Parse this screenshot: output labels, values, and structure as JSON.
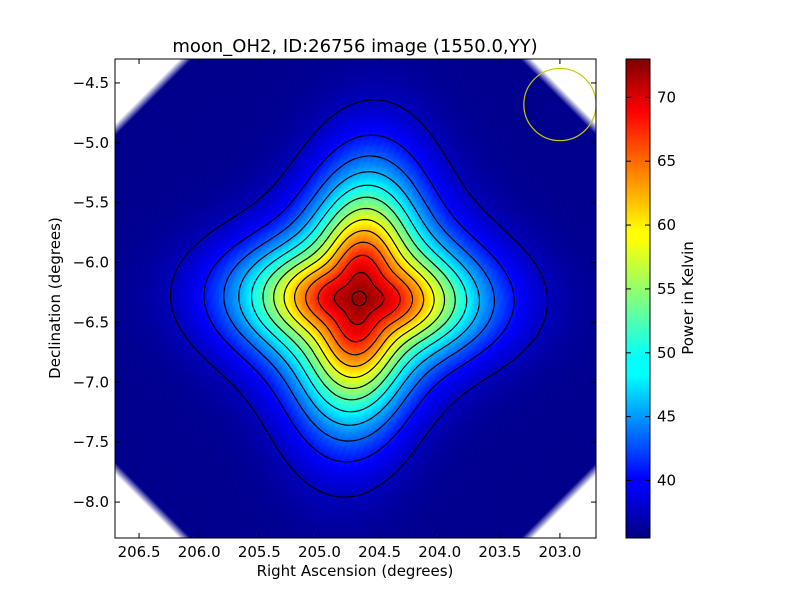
{
  "chart_data": {
    "type": "heatmap",
    "title": "moon_OH2, ID:26756 image (1550.0,YY)",
    "xlabel": "Right Ascension (degrees)",
    "ylabel": "Declination (degrees)",
    "colorbar_label": "Power in Kelvin",
    "colormap": "jet",
    "xlim": [
      206.7,
      202.7
    ],
    "ylim": [
      -8.3,
      -4.3
    ],
    "x_ticks": [
      206.5,
      206.0,
      205.5,
      205.0,
      204.5,
      204.0,
      203.5,
      203.0
    ],
    "x_tick_labels": [
      "206.5",
      "206.0",
      "205.5",
      "205.0",
      "204.5",
      "204.0",
      "203.5",
      "203.0"
    ],
    "y_ticks": [
      -4.5,
      -5.0,
      -5.5,
      -6.0,
      -6.5,
      -7.0,
      -7.5,
      -8.0
    ],
    "y_tick_labels": [
      "−4.5",
      "−5.0",
      "−5.5",
      "−6.0",
      "−6.5",
      "−7.0",
      "−7.5",
      "−8.0"
    ],
    "colorbar_range": [
      35.5,
      73
    ],
    "colorbar_ticks": [
      40,
      45,
      50,
      55,
      60,
      65,
      70
    ],
    "colorbar_tick_labels": [
      "40",
      "45",
      "50",
      "55",
      "60",
      "65",
      "70"
    ],
    "background_level": 36,
    "peak": {
      "ra": 204.67,
      "dec": -6.3,
      "value": 72
    },
    "beam_marker": {
      "ra": 203.0,
      "dec": -4.68,
      "radius_deg": 0.3,
      "color": "#c8c800"
    },
    "center_marker": {
      "ra": 204.67,
      "dec": -6.3,
      "radius_deg": 0.06
    },
    "contour_count": 12,
    "grid": false
  }
}
